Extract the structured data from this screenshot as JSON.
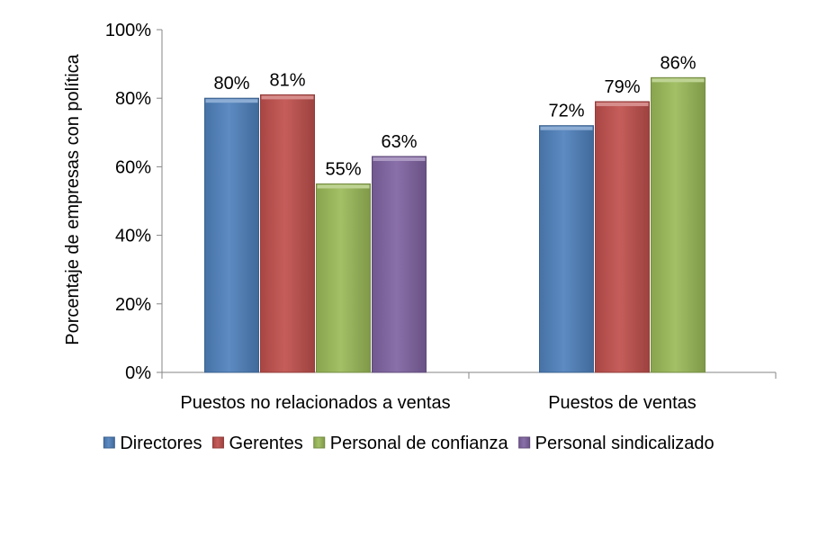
{
  "chart_data": {
    "type": "bar",
    "title": "",
    "xlabel": "",
    "ylabel": "Porcentaje de empresas con política",
    "ylim": [
      0,
      100
    ],
    "y_ticks": [
      0,
      20,
      40,
      60,
      80,
      100
    ],
    "y_tick_labels": [
      "0%",
      "20%",
      "40%",
      "60%",
      "80%",
      "100%"
    ],
    "grid": false,
    "legend_position": "bottom",
    "categories": [
      "Puestos no relacionados a ventas",
      "Puestos de ventas"
    ],
    "series": [
      {
        "name": "Directores",
        "color": "#4f81bd",
        "values": [
          80,
          72
        ],
        "labels": [
          "80%",
          "72%"
        ]
      },
      {
        "name": "Gerentes",
        "color": "#c0504d",
        "values": [
          81,
          79
        ],
        "labels": [
          "81%",
          "79%"
        ]
      },
      {
        "name": "Personal de confianza",
        "color": "#9bbb59",
        "values": [
          55,
          86
        ],
        "labels": [
          "55%",
          "86%"
        ]
      },
      {
        "name": "Personal sindicalizado",
        "color": "#8064a2",
        "values": [
          63,
          null
        ],
        "labels": [
          "63%",
          null
        ]
      }
    ]
  }
}
